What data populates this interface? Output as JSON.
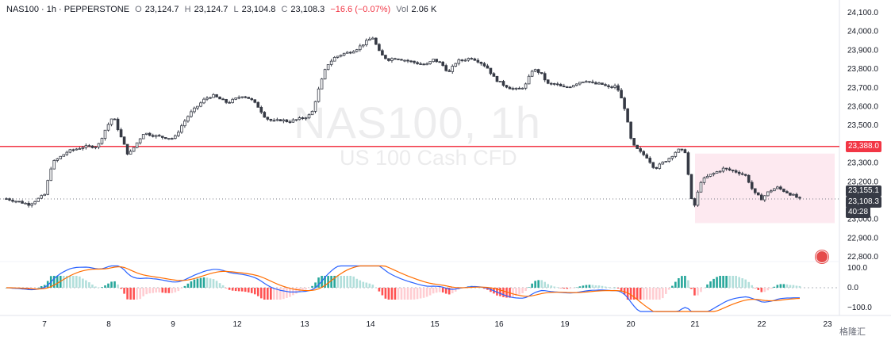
{
  "header": {
    "symbol": "NAS100 · 1h · PEPPERSTONE",
    "open_label": "O",
    "open": "23,124.7",
    "high_label": "H",
    "high": "23,124.7",
    "low_label": "L",
    "low": "23,104.8",
    "close_label": "C",
    "close": "23,108.3",
    "change": "−16.6 (−0.07%)",
    "vol_label": "Vol",
    "vol": "2.06 K"
  },
  "watermark": {
    "title": "NAS100, 1h",
    "subtitle": "US 100 Cash CFD"
  },
  "tags": {
    "resistance": "23,388.0",
    "prev": "23,155.1",
    "last": "23,108.3",
    "countdown": "40:28"
  },
  "brand": "格隆汇",
  "colors": {
    "up": "#089981",
    "down": "#f23645",
    "candle": "#363a45",
    "macd": "#2962ff",
    "signal": "#ff6d00",
    "level": "#f23645",
    "box": "#fce4ec"
  },
  "chart_data": {
    "type": "candlestick",
    "x_ticks": [
      "7",
      "8",
      "9",
      "12",
      "13",
      "14",
      "15",
      "16",
      "19",
      "20",
      "21",
      "22",
      "23"
    ],
    "y_ticks": [
      "24,100.0",
      "24,000.0",
      "23,900.0",
      "23,800.0",
      "23,700.0",
      "23,600.0",
      "23,500.0",
      "23,400.0",
      "23,300.0",
      "23,200.0",
      "23,100.0",
      "23,000.0",
      "22,900.0",
      "22,800.0"
    ],
    "ylim": [
      22750,
      24130
    ],
    "price_path": [
      [
        0,
        23110
      ],
      [
        3,
        23080
      ],
      [
        5,
        23130
      ],
      [
        6,
        23300
      ],
      [
        8,
        23360
      ],
      [
        10,
        23385
      ],
      [
        12,
        23390
      ],
      [
        13,
        23480
      ],
      [
        14,
        23550
      ],
      [
        15,
        23440
      ],
      [
        16,
        23340
      ],
      [
        17,
        23400
      ],
      [
        18,
        23460
      ],
      [
        20,
        23440
      ],
      [
        22,
        23430
      ],
      [
        23,
        23500
      ],
      [
        24,
        23560
      ],
      [
        25,
        23600
      ],
      [
        26,
        23640
      ],
      [
        27,
        23660
      ],
      [
        28,
        23640
      ],
      [
        29,
        23620
      ],
      [
        30,
        23640
      ],
      [
        31,
        23660
      ],
      [
        32,
        23640
      ],
      [
        33,
        23600
      ],
      [
        34,
        23540
      ],
      [
        35,
        23520
      ],
      [
        36,
        23530
      ],
      [
        37,
        23520
      ],
      [
        38,
        23530
      ],
      [
        39,
        23540
      ],
      [
        40,
        23560
      ],
      [
        41,
        23700
      ],
      [
        42,
        23820
      ],
      [
        43,
        23860
      ],
      [
        44,
        23880
      ],
      [
        45,
        23890
      ],
      [
        46,
        23910
      ],
      [
        47,
        23940
      ],
      [
        48,
        23970
      ],
      [
        49,
        23880
      ],
      [
        50,
        23850
      ],
      [
        51,
        23860
      ],
      [
        52,
        23850
      ],
      [
        53,
        23840
      ],
      [
        54,
        23830
      ],
      [
        55,
        23820
      ],
      [
        56,
        23850
      ],
      [
        57,
        23830
      ],
      [
        58,
        23780
      ],
      [
        59,
        23840
      ],
      [
        60,
        23850
      ],
      [
        61,
        23860
      ],
      [
        62,
        23840
      ],
      [
        63,
        23810
      ],
      [
        64,
        23750
      ],
      [
        65,
        23720
      ],
      [
        66,
        23700
      ],
      [
        67,
        23690
      ],
      [
        68,
        23710
      ],
      [
        69,
        23800
      ],
      [
        70,
        23780
      ],
      [
        71,
        23720
      ],
      [
        72,
        23720
      ],
      [
        73,
        23700
      ],
      [
        74,
        23710
      ],
      [
        75,
        23730
      ],
      [
        76,
        23740
      ],
      [
        77,
        23720
      ],
      [
        78,
        23720
      ],
      [
        79,
        23700
      ],
      [
        80,
        23710
      ],
      [
        81,
        23600
      ],
      [
        82,
        23400
      ],
      [
        83,
        23360
      ],
      [
        84,
        23330
      ],
      [
        85,
        23270
      ],
      [
        86,
        23300
      ],
      [
        87,
        23330
      ],
      [
        88,
        23370
      ],
      [
        89,
        23360
      ],
      [
        90,
        23040
      ],
      [
        91,
        23200
      ],
      [
        92,
        23230
      ],
      [
        93,
        23250
      ],
      [
        94,
        23270
      ],
      [
        95,
        23260
      ],
      [
        96,
        23250
      ],
      [
        97,
        23230
      ],
      [
        98,
        23140
      ],
      [
        99,
        23110
      ],
      [
        100,
        23150
      ],
      [
        101,
        23170
      ],
      [
        102,
        23150
      ],
      [
        103,
        23130
      ],
      [
        104,
        23108
      ]
    ],
    "levels": [
      {
        "value": 23388.0,
        "label": "23,388.0"
      }
    ],
    "last_price": 23108.3,
    "macd": {
      "yticks": [
        "100.0",
        "0.0",
        "−100.0"
      ],
      "ylim": [
        -130,
        120
      ]
    }
  }
}
